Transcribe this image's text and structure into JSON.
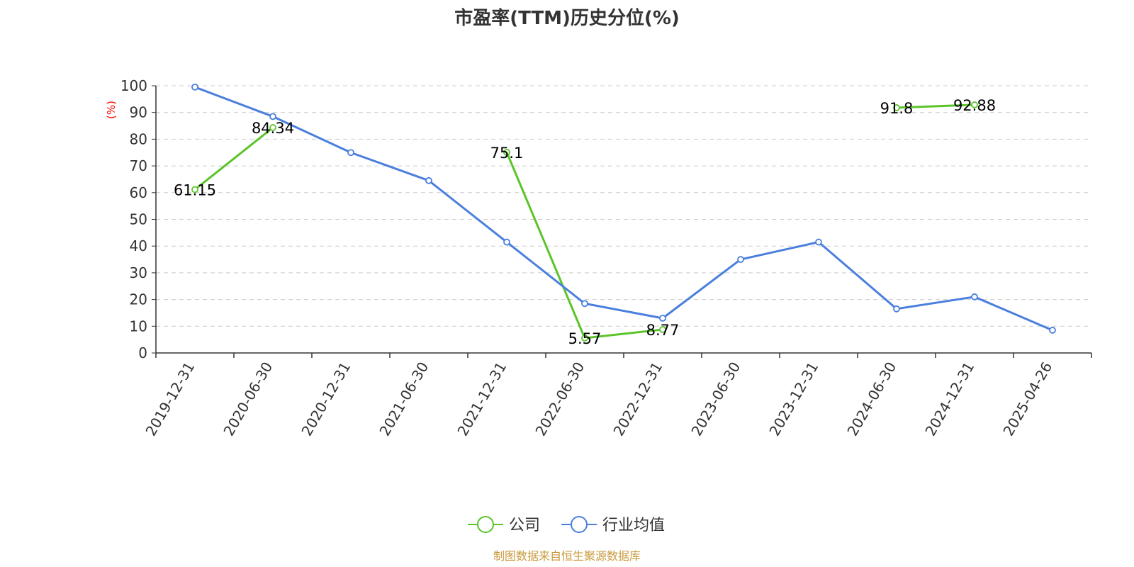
{
  "chart_data": {
    "type": "line",
    "title": "市盈率(TTM)历史分位(%)",
    "ylabel": "(%)",
    "ylim": [
      0,
      100
    ],
    "yticks": [
      0,
      10,
      20,
      30,
      40,
      50,
      60,
      70,
      80,
      90,
      100
    ],
    "grid": true,
    "legend_position": "bottom-center",
    "categories": [
      "2019-12-31",
      "2020-06-30",
      "2020-12-31",
      "2021-06-30",
      "2021-12-31",
      "2022-06-30",
      "2022-12-31",
      "2023-06-30",
      "2023-12-31",
      "2024-06-30",
      "2024-12-31",
      "2025-04-26"
    ],
    "series": [
      {
        "name": "公司",
        "color": "#5bc42a",
        "show_labels": true,
        "values": [
          61.15,
          84.34,
          null,
          null,
          75.1,
          5.57,
          8.77,
          null,
          null,
          91.8,
          92.88,
          null
        ],
        "labels": [
          "61.15",
          "84.34",
          null,
          null,
          "75.1",
          "5.57",
          "8.77",
          null,
          null,
          "91.8",
          "92.88",
          null
        ]
      },
      {
        "name": "行业均值",
        "color": "#4a7fde",
        "show_labels": false,
        "values": [
          99.5,
          88.5,
          75,
          64.5,
          41.5,
          18.5,
          13,
          35,
          41.5,
          16.5,
          21,
          8.5
        ]
      }
    ],
    "source": "制图数据来自恒生聚源数据库"
  }
}
